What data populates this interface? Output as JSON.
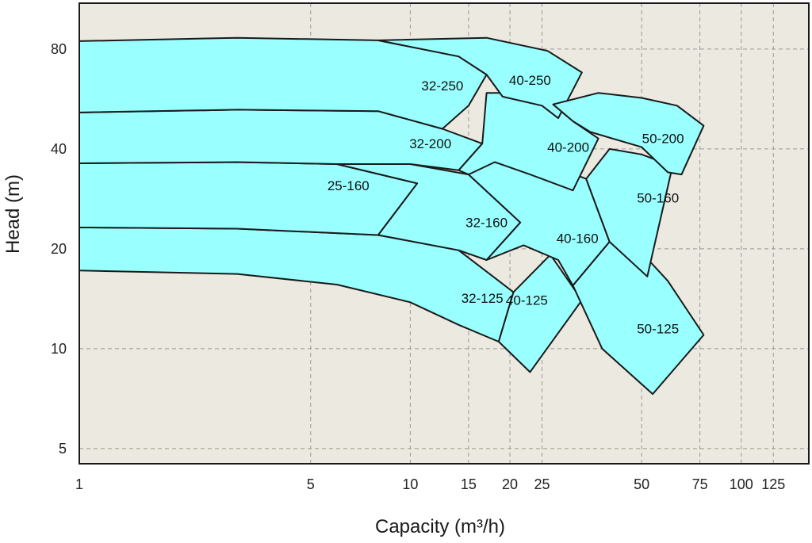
{
  "chart_data": {
    "type": "area",
    "title": "",
    "xlabel": "Capacity (m³/h)",
    "ylabel": "Head (m)",
    "x_scale": "log",
    "y_scale": "log",
    "xlim": [
      1,
      160
    ],
    "ylim": [
      4.5,
      110
    ],
    "x_ticks": [
      1,
      5,
      10,
      15,
      20,
      25,
      50,
      75,
      100,
      125
    ],
    "y_ticks": [
      5,
      10,
      20,
      40,
      80
    ],
    "grid": true,
    "colors": {
      "plot_bg": "#ebe9e0",
      "region_fill": "#99ffff",
      "region_stroke": "#1a1a1a",
      "grid": "#999999"
    },
    "regions": [
      {
        "name": "32-125",
        "label_at": [
          16.5,
          14.2
        ],
        "outline": [
          [
            1,
            17.2
          ],
          [
            3,
            16.8
          ],
          [
            6,
            15.6
          ],
          [
            10,
            13.8
          ],
          [
            14,
            11.8
          ],
          [
            18.5,
            10.5
          ],
          [
            20.5,
            14.8
          ],
          [
            14,
            19.8
          ],
          [
            8,
            22.0
          ],
          [
            3,
            23.0
          ],
          [
            1,
            23.2
          ]
        ]
      },
      {
        "name": "25-160",
        "label_at": [
          6.5,
          31.0
        ],
        "outline": [
          [
            1,
            23.2
          ],
          [
            3,
            23.0
          ],
          [
            8,
            22.0
          ],
          [
            10.5,
            31.5
          ],
          [
            6,
            36.0
          ],
          [
            3,
            36.5
          ],
          [
            1,
            36.2
          ]
        ]
      },
      {
        "name": "32-160",
        "label_at": [
          17.0,
          24.0
        ],
        "outline": [
          [
            8,
            22.0
          ],
          [
            14,
            19.8
          ],
          [
            17,
            18.5
          ],
          [
            21.5,
            24.0
          ],
          [
            15,
            33.5
          ],
          [
            10,
            36.0
          ],
          [
            6,
            36.0
          ],
          [
            10.5,
            31.5
          ]
        ]
      },
      {
        "name": "32-200",
        "label_at": [
          11.5,
          41.5
        ],
        "outline": [
          [
            1,
            36.2
          ],
          [
            3,
            36.5
          ],
          [
            6,
            36.0
          ],
          [
            10,
            36.0
          ],
          [
            14,
            34.5
          ],
          [
            16.5,
            41.5
          ],
          [
            12.5,
            46.0
          ],
          [
            8,
            52.0
          ],
          [
            3,
            52.5
          ],
          [
            1,
            51.5
          ]
        ]
      },
      {
        "name": "32-250",
        "label_at": [
          12.5,
          62.0
        ],
        "outline": [
          [
            1,
            51.5
          ],
          [
            3,
            52.5
          ],
          [
            8,
            52.0
          ],
          [
            12.5,
            46.0
          ],
          [
            15,
            54.0
          ],
          [
            17,
            67.0
          ],
          [
            14,
            76.0
          ],
          [
            8,
            85.0
          ],
          [
            3,
            86.5
          ],
          [
            1,
            84.5
          ]
        ]
      },
      {
        "name": "40-125",
        "label_at": [
          22.5,
          14.0
        ],
        "outline": [
          [
            18.5,
            10.5
          ],
          [
            23.0,
            8.5
          ],
          [
            33.0,
            14.0
          ],
          [
            26.5,
            19.2
          ],
          [
            20.5,
            14.8
          ]
        ]
      },
      {
        "name": "40-160",
        "label_at": [
          32.0,
          21.5
        ],
        "outline": [
          [
            17,
            18.5
          ],
          [
            22,
            20.5
          ],
          [
            28,
            18.5
          ],
          [
            31,
            15.5
          ],
          [
            40,
            21.0
          ],
          [
            34,
            32.5
          ],
          [
            25,
            36.5
          ],
          [
            17,
            38.0
          ],
          [
            15,
            33.5
          ],
          [
            21.5,
            24.0
          ]
        ]
      },
      {
        "name": "40-200",
        "label_at": [
          30.0,
          40.5
        ],
        "outline": [
          [
            15,
            33.5
          ],
          [
            18,
            36.5
          ],
          [
            23,
            33.5
          ],
          [
            31,
            30.0
          ],
          [
            37,
            43.0
          ],
          [
            31,
            48.5
          ],
          [
            27,
            54.5
          ],
          [
            20,
            59.0
          ],
          [
            17,
            59.0
          ],
          [
            16.5,
            41.5
          ],
          [
            14,
            34.5
          ]
        ]
      },
      {
        "name": "40-250",
        "label_at": [
          23.0,
          64.5
        ],
        "outline": [
          [
            14,
            76.0
          ],
          [
            17,
            67.0
          ],
          [
            19,
            57.5
          ],
          [
            25,
            54.0
          ],
          [
            28,
            49.5
          ],
          [
            33,
            68.0
          ],
          [
            26,
            79.0
          ],
          [
            17,
            86.5
          ],
          [
            8,
            85.0
          ]
        ]
      },
      {
        "name": "50-125",
        "label_at": [
          56.0,
          11.5
        ],
        "outline": [
          [
            31,
            15.5
          ],
          [
            40,
            21.0
          ],
          [
            50,
            19.5
          ],
          [
            60,
            16.0
          ],
          [
            77,
            11.0
          ],
          [
            54,
            7.3
          ],
          [
            38,
            10.0
          ]
        ]
      },
      {
        "name": "50-160",
        "label_at": [
          56.0,
          28.5
        ],
        "outline": [
          [
            34,
            32.5
          ],
          [
            40,
            21.0
          ],
          [
            52,
            16.5
          ],
          [
            62,
            35.5
          ],
          [
            50,
            38.5
          ],
          [
            40,
            40.0
          ]
        ]
      },
      {
        "name": "50-200",
        "label_at": [
          58.0,
          43.0
        ],
        "outline": [
          [
            31,
            48.5
          ],
          [
            35,
            45.0
          ],
          [
            50,
            40.5
          ],
          [
            60,
            34.0
          ],
          [
            66,
            33.5
          ],
          [
            77,
            47.0
          ],
          [
            64,
            54.0
          ],
          [
            50,
            57.0
          ],
          [
            37,
            59.0
          ],
          [
            27,
            54.5
          ]
        ]
      }
    ]
  }
}
